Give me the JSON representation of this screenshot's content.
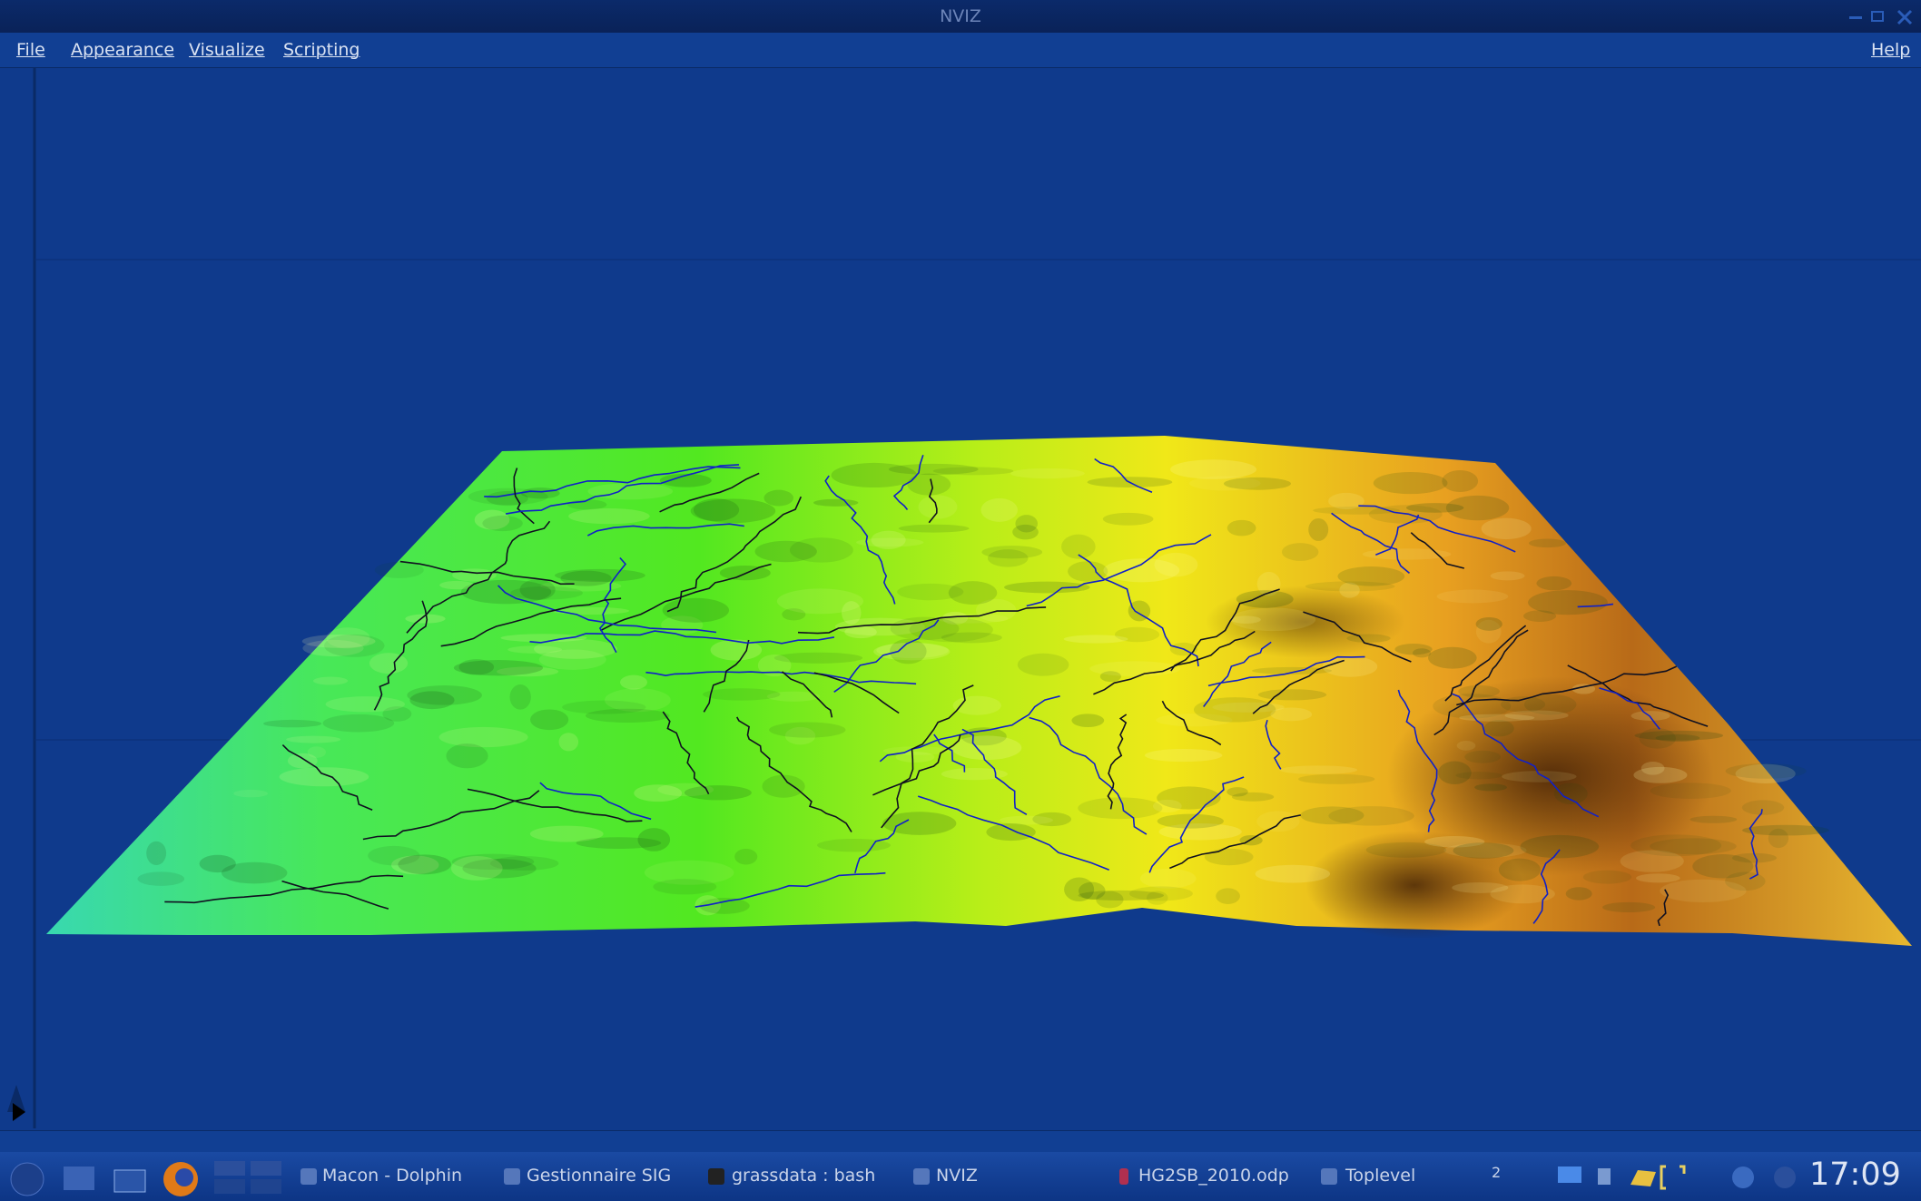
{
  "window": {
    "title": "NVIZ"
  },
  "menu": {
    "items": [
      "File",
      "Appearance",
      "Visualize",
      "Scripting"
    ],
    "help": "Help"
  },
  "taskbar": {
    "tasks": [
      "Macon - Dolphin",
      "Gestionnaire SIG",
      "grassdata : bash",
      "NVIZ",
      "HG2SB_2010.odp",
      "Toplevel"
    ],
    "pager": "2",
    "clock": "17:09"
  }
}
